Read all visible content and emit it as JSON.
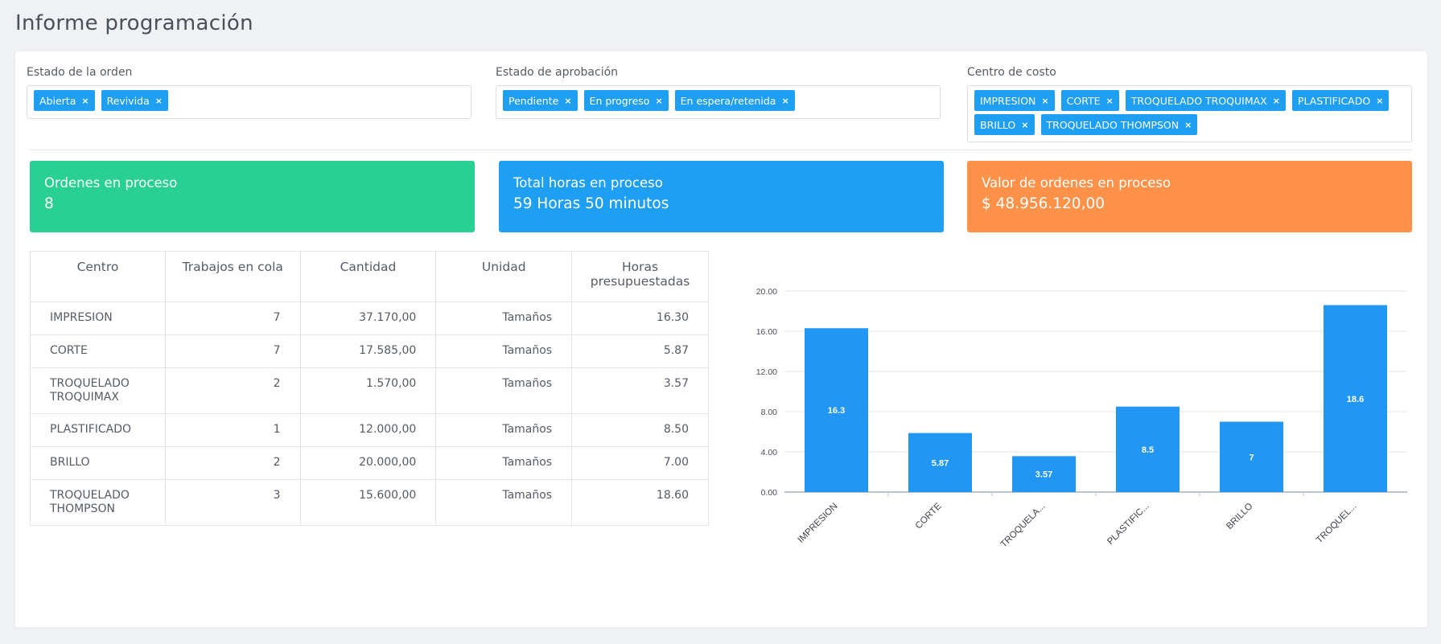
{
  "page": {
    "title": "Informe programación"
  },
  "filters": [
    {
      "label": "Estado de la orden",
      "tags": [
        "Abierta",
        "Revivida"
      ]
    },
    {
      "label": "Estado de aprobación",
      "tags": [
        "Pendiente",
        "En progreso",
        "En espera/retenida"
      ]
    },
    {
      "label": "Centro de costo",
      "tags": [
        "IMPRESION",
        "CORTE",
        "TROQUELADO TROQUIMAX",
        "PLASTIFICADO",
        "BRILLO",
        "TROQUELADO THOMPSON"
      ]
    }
  ],
  "tag_remove_glyph": "×",
  "stats": [
    {
      "label": "Ordenes en proceso",
      "value": "8",
      "color": "#28d094"
    },
    {
      "label": "Total horas en proceso",
      "value": "59 Horas 50 minutos",
      "color": "#1e9ff2"
    },
    {
      "label": "Valor de ordenes en proceso",
      "value": "$ 48.956.120,00",
      "color": "#ff9149"
    }
  ],
  "table": {
    "headers": [
      "Centro",
      "Trabajos en cola",
      "Cantidad",
      "Unidad",
      "Horas presupuestadas"
    ],
    "rows": [
      [
        "IMPRESION",
        "7",
        "37.170,00",
        "Tamaños",
        "16.30"
      ],
      [
        "CORTE",
        "7",
        "17.585,00",
        "Tamaños",
        "5.87"
      ],
      [
        "TROQUELADO TROQUIMAX",
        "2",
        "1.570,00",
        "Tamaños",
        "3.57"
      ],
      [
        "PLASTIFICADO",
        "1",
        "12.000,00",
        "Tamaños",
        "8.50"
      ],
      [
        "BRILLO",
        "2",
        "20.000,00",
        "Tamaños",
        "7.00"
      ],
      [
        "TROQUELADO THOMPSON",
        "3",
        "15.600,00",
        "Tamaños",
        "18.60"
      ]
    ]
  },
  "chart_data": {
    "type": "bar",
    "categories": [
      "IMPRESION",
      "CORTE",
      "TROQUELA...",
      "PLASTIFIC...",
      "BRILLO",
      "TROQUEL..."
    ],
    "values": [
      16.3,
      5.87,
      3.57,
      8.5,
      7,
      18.6
    ],
    "value_labels": [
      "16.3",
      "5.87",
      "3.57",
      "8.5",
      "7",
      "18.6"
    ],
    "y_ticks": [
      "0.00",
      "4.00",
      "8.00",
      "12.00",
      "16.00",
      "20.00"
    ],
    "ylim": [
      0,
      20
    ],
    "grid": true,
    "legend": "none",
    "bar_color": "#2196f3",
    "title": "",
    "xlabel": "",
    "ylabel": ""
  }
}
